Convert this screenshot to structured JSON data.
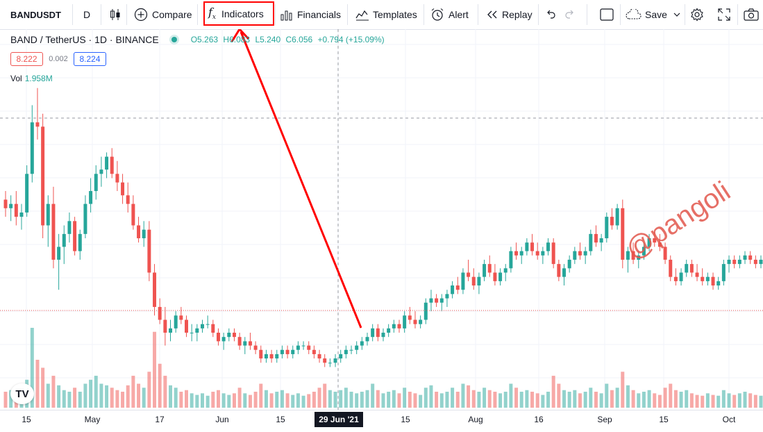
{
  "toolbar": {
    "symbol": "BANDUSDT",
    "interval": "D",
    "compare": "Compare",
    "indicators": "Indicators",
    "financials": "Financials",
    "templates": "Templates",
    "alert": "Alert",
    "replay": "Replay",
    "save": "Save"
  },
  "legend": {
    "title": "BAND / TetherUS · 1D · BINANCE",
    "open": "O5.263",
    "high": "H6.083",
    "low": "L5.240",
    "close": "C6.056",
    "change": "+0.794 (+15.09%)"
  },
  "price_boxes": {
    "bid": "8.222",
    "spread": "0.002",
    "ask": "8.224"
  },
  "volume": {
    "label": "Vol",
    "value": "1.958M"
  },
  "x_axis": [
    "15",
    "May",
    "17",
    "Jun",
    "15",
    "29 Jun '21",
    "15",
    "Aug",
    "16",
    "Sep",
    "15",
    "Oct"
  ],
  "crosshair_date": "29 Jun '21",
  "watermark": "@pangoli",
  "logo": "TV",
  "colors": {
    "up": "#26a69a",
    "down": "#ef5350",
    "annotation": "#ff0000"
  },
  "chart_data": {
    "type": "candlestick",
    "pair": "BAND / TetherUS",
    "timeframe": "1D",
    "x_tick_labels": [
      "15",
      "May",
      "17",
      "Jun",
      "15",
      "29 Jun '21",
      "15",
      "Aug",
      "16",
      "Sep",
      "15",
      "Oct"
    ],
    "candles": [
      [
        6.4,
        6.6,
        6.0,
        6.2
      ],
      [
        6.2,
        6.5,
        5.9,
        6.3
      ],
      [
        6.3,
        6.6,
        5.8,
        6.0
      ],
      [
        6.0,
        6.3,
        5.7,
        6.1
      ],
      [
        6.1,
        7.2,
        6.0,
        7.0
      ],
      [
        7.0,
        8.6,
        6.8,
        8.2
      ],
      [
        8.2,
        9.0,
        7.8,
        8.1
      ],
      [
        8.1,
        8.4,
        5.5,
        5.8
      ],
      [
        5.8,
        6.5,
        5.3,
        6.3
      ],
      [
        6.3,
        6.7,
        4.8,
        5.0
      ],
      [
        5.0,
        5.6,
        4.3,
        5.3
      ],
      [
        5.3,
        5.8,
        4.9,
        5.6
      ],
      [
        5.6,
        6.1,
        5.4,
        5.9
      ],
      [
        5.9,
        6.0,
        5.1,
        5.2
      ],
      [
        5.2,
        5.7,
        5.0,
        5.6
      ],
      [
        5.6,
        6.5,
        5.5,
        6.3
      ],
      [
        6.3,
        6.9,
        6.1,
        6.6
      ],
      [
        6.6,
        7.2,
        6.4,
        7.0
      ],
      [
        7.0,
        7.4,
        6.7,
        7.1
      ],
      [
        7.1,
        7.5,
        6.9,
        7.4
      ],
      [
        7.4,
        7.6,
        6.9,
        7.0
      ],
      [
        7.0,
        7.3,
        6.6,
        6.8
      ],
      [
        6.8,
        7.0,
        6.3,
        6.5
      ],
      [
        6.5,
        6.8,
        6.1,
        6.3
      ],
      [
        6.3,
        6.5,
        5.7,
        5.8
      ],
      [
        5.8,
        6.0,
        5.4,
        5.5
      ],
      [
        5.5,
        5.9,
        5.3,
        5.7
      ],
      [
        5.7,
        5.9,
        4.5,
        4.7
      ],
      [
        4.7,
        4.9,
        3.7,
        3.9
      ],
      [
        3.9,
        4.1,
        3.5,
        3.6
      ],
      [
        3.6,
        3.9,
        3.0,
        3.3
      ],
      [
        3.3,
        3.6,
        3.1,
        3.4
      ],
      [
        3.4,
        3.8,
        3.3,
        3.7
      ],
      [
        3.7,
        3.9,
        3.5,
        3.6
      ],
      [
        3.6,
        3.7,
        3.2,
        3.3
      ],
      [
        3.3,
        3.5,
        3.1,
        3.3
      ],
      [
        3.3,
        3.5,
        3.1,
        3.4
      ],
      [
        3.4,
        3.6,
        3.3,
        3.5
      ],
      [
        3.5,
        3.7,
        3.4,
        3.5
      ],
      [
        3.5,
        3.6,
        3.2,
        3.3
      ],
      [
        3.3,
        3.4,
        3.0,
        3.1
      ],
      [
        3.1,
        3.3,
        2.9,
        3.2
      ],
      [
        3.2,
        3.4,
        3.1,
        3.3
      ],
      [
        3.3,
        3.4,
        3.1,
        3.2
      ],
      [
        3.2,
        3.3,
        2.9,
        3.0
      ],
      [
        3.0,
        3.2,
        2.8,
        3.1
      ],
      [
        3.1,
        3.3,
        2.9,
        3.0
      ],
      [
        3.0,
        3.1,
        2.8,
        2.9
      ],
      [
        2.9,
        3.0,
        2.6,
        2.7
      ],
      [
        2.7,
        2.9,
        2.6,
        2.8
      ],
      [
        2.8,
        2.9,
        2.6,
        2.7
      ],
      [
        2.7,
        2.9,
        2.6,
        2.8
      ],
      [
        2.8,
        3.0,
        2.7,
        2.9
      ],
      [
        2.9,
        3.0,
        2.7,
        2.8
      ],
      [
        2.8,
        3.0,
        2.7,
        2.9
      ],
      [
        2.9,
        3.1,
        2.8,
        3.0
      ],
      [
        3.0,
        3.1,
        2.9,
        3.0
      ],
      [
        3.0,
        3.1,
        2.8,
        2.9
      ],
      [
        2.9,
        3.0,
        2.7,
        2.8
      ],
      [
        2.8,
        2.9,
        2.6,
        2.7
      ],
      [
        2.7,
        2.8,
        2.5,
        2.6
      ],
      [
        2.6,
        2.7,
        2.5,
        2.6
      ],
      [
        2.6,
        2.8,
        2.5,
        2.7
      ],
      [
        2.7,
        2.9,
        2.6,
        2.8
      ],
      [
        2.8,
        3.0,
        2.7,
        2.9
      ],
      [
        2.9,
        3.0,
        2.8,
        2.9
      ],
      [
        2.9,
        3.1,
        2.8,
        3.0
      ],
      [
        3.0,
        3.2,
        2.9,
        3.1
      ],
      [
        3.1,
        3.3,
        3.0,
        3.2
      ],
      [
        3.2,
        3.5,
        3.1,
        3.4
      ],
      [
        3.4,
        3.5,
        3.1,
        3.2
      ],
      [
        3.2,
        3.4,
        3.1,
        3.3
      ],
      [
        3.3,
        3.5,
        3.2,
        3.4
      ],
      [
        3.4,
        3.6,
        3.3,
        3.5
      ],
      [
        3.5,
        3.6,
        3.3,
        3.4
      ],
      [
        3.4,
        3.8,
        3.3,
        3.7
      ],
      [
        3.7,
        3.9,
        3.5,
        3.6
      ],
      [
        3.6,
        3.8,
        3.4,
        3.5
      ],
      [
        3.5,
        3.7,
        3.4,
        3.6
      ],
      [
        3.6,
        4.1,
        3.5,
        4.0
      ],
      [
        4.0,
        4.3,
        3.8,
        4.1
      ],
      [
        4.1,
        4.2,
        3.9,
        4.0
      ],
      [
        4.0,
        4.2,
        3.8,
        4.1
      ],
      [
        4.1,
        4.3,
        3.9,
        4.2
      ],
      [
        4.2,
        4.5,
        4.1,
        4.4
      ],
      [
        4.4,
        4.6,
        4.2,
        4.3
      ],
      [
        4.3,
        4.8,
        4.2,
        4.7
      ],
      [
        4.7,
        5.0,
        4.5,
        4.6
      ],
      [
        4.6,
        4.8,
        4.3,
        4.4
      ],
      [
        4.4,
        4.7,
        4.2,
        4.6
      ],
      [
        4.6,
        5.0,
        4.5,
        4.9
      ],
      [
        4.9,
        5.1,
        4.6,
        4.7
      ],
      [
        4.7,
        4.9,
        4.4,
        4.5
      ],
      [
        4.5,
        4.8,
        4.4,
        4.7
      ],
      [
        4.7,
        4.9,
        4.5,
        4.8
      ],
      [
        4.8,
        5.3,
        4.7,
        5.2
      ],
      [
        5.2,
        5.4,
        5.0,
        5.1
      ],
      [
        5.1,
        5.3,
        4.9,
        5.2
      ],
      [
        5.2,
        5.5,
        5.1,
        5.4
      ],
      [
        5.4,
        5.6,
        5.1,
        5.2
      ],
      [
        5.2,
        5.4,
        5.0,
        5.1
      ],
      [
        5.1,
        5.3,
        4.9,
        5.2
      ],
      [
        5.2,
        5.5,
        5.1,
        5.4
      ],
      [
        5.4,
        5.5,
        4.8,
        4.9
      ],
      [
        4.9,
        5.0,
        4.5,
        4.6
      ],
      [
        4.6,
        4.9,
        4.4,
        4.8
      ],
      [
        4.8,
        5.1,
        4.7,
        5.0
      ],
      [
        5.0,
        5.3,
        4.9,
        5.2
      ],
      [
        5.2,
        5.4,
        5.0,
        5.1
      ],
      [
        5.1,
        5.3,
        4.9,
        5.2
      ],
      [
        5.2,
        5.7,
        5.1,
        5.6
      ],
      [
        5.6,
        5.8,
        5.3,
        5.4
      ],
      [
        5.4,
        5.6,
        5.2,
        5.5
      ],
      [
        5.5,
        6.1,
        5.4,
        6.0
      ],
      [
        6.0,
        6.2,
        5.7,
        5.8
      ],
      [
        5.8,
        6.3,
        5.7,
        6.2
      ],
      [
        6.2,
        6.4,
        4.8,
        5.0
      ],
      [
        5.0,
        5.3,
        4.7,
        5.2
      ],
      [
        5.2,
        5.4,
        4.9,
        5.0
      ],
      [
        5.0,
        5.2,
        4.8,
        5.1
      ],
      [
        5.1,
        5.4,
        5.0,
        5.3
      ],
      [
        5.3,
        5.6,
        5.2,
        5.5
      ],
      [
        5.5,
        5.7,
        5.3,
        5.4
      ],
      [
        5.4,
        5.6,
        5.2,
        5.3
      ],
      [
        5.3,
        5.4,
        4.9,
        5.0
      ],
      [
        5.0,
        5.1,
        4.5,
        4.6
      ],
      [
        4.6,
        4.8,
        4.4,
        4.5
      ],
      [
        4.5,
        4.8,
        4.4,
        4.7
      ],
      [
        4.7,
        5.0,
        4.6,
        4.9
      ],
      [
        4.9,
        5.0,
        4.6,
        4.7
      ],
      [
        4.7,
        4.9,
        4.5,
        4.6
      ],
      [
        4.6,
        4.8,
        4.4,
        4.5
      ],
      [
        4.5,
        4.7,
        4.4,
        4.6
      ],
      [
        4.6,
        4.7,
        4.3,
        4.4
      ],
      [
        4.4,
        4.6,
        4.3,
        4.5
      ],
      [
        4.5,
        5.0,
        4.4,
        4.9
      ],
      [
        4.9,
        5.1,
        4.7,
        5.0
      ],
      [
        5.0,
        5.1,
        4.8,
        4.9
      ],
      [
        4.9,
        5.1,
        4.8,
        5.0
      ],
      [
        5.0,
        5.2,
        4.9,
        5.1
      ],
      [
        5.1,
        5.2,
        4.9,
        5.0
      ],
      [
        5.0,
        5.1,
        4.8,
        4.9
      ],
      [
        4.9,
        5.1,
        4.8,
        5.0
      ]
    ],
    "volume": [
      0.2,
      0.22,
      0.18,
      0.16,
      0.35,
      1.0,
      0.6,
      0.5,
      0.3,
      0.4,
      0.28,
      0.22,
      0.2,
      0.25,
      0.2,
      0.3,
      0.35,
      0.4,
      0.3,
      0.28,
      0.25,
      0.22,
      0.2,
      0.28,
      0.4,
      0.3,
      0.25,
      0.45,
      0.95,
      0.55,
      0.4,
      0.28,
      0.25,
      0.2,
      0.22,
      0.18,
      0.16,
      0.18,
      0.15,
      0.2,
      0.22,
      0.18,
      0.16,
      0.18,
      0.25,
      0.18,
      0.16,
      0.2,
      0.3,
      0.22,
      0.18,
      0.2,
      0.22,
      0.18,
      0.16,
      0.18,
      0.15,
      0.17,
      0.2,
      0.25,
      0.3,
      0.22,
      0.2,
      0.22,
      0.25,
      0.2,
      0.18,
      0.2,
      0.22,
      0.3,
      0.22,
      0.18,
      0.2,
      0.22,
      0.18,
      0.25,
      0.2,
      0.18,
      0.16,
      0.25,
      0.28,
      0.2,
      0.18,
      0.2,
      0.25,
      0.2,
      0.3,
      0.28,
      0.22,
      0.2,
      0.25,
      0.22,
      0.2,
      0.18,
      0.2,
      0.3,
      0.25,
      0.2,
      0.22,
      0.2,
      0.18,
      0.16,
      0.2,
      0.4,
      0.3,
      0.22,
      0.2,
      0.22,
      0.18,
      0.2,
      0.25,
      0.2,
      0.18,
      0.3,
      0.22,
      0.25,
      0.45,
      0.28,
      0.22,
      0.18,
      0.2,
      0.22,
      0.18,
      0.16,
      0.25,
      0.3,
      0.22,
      0.2,
      0.22,
      0.18,
      0.16,
      0.15,
      0.18,
      0.16,
      0.15,
      0.22,
      0.18,
      0.16,
      0.18,
      0.2,
      0.18,
      0.16,
      0.15
    ]
  }
}
